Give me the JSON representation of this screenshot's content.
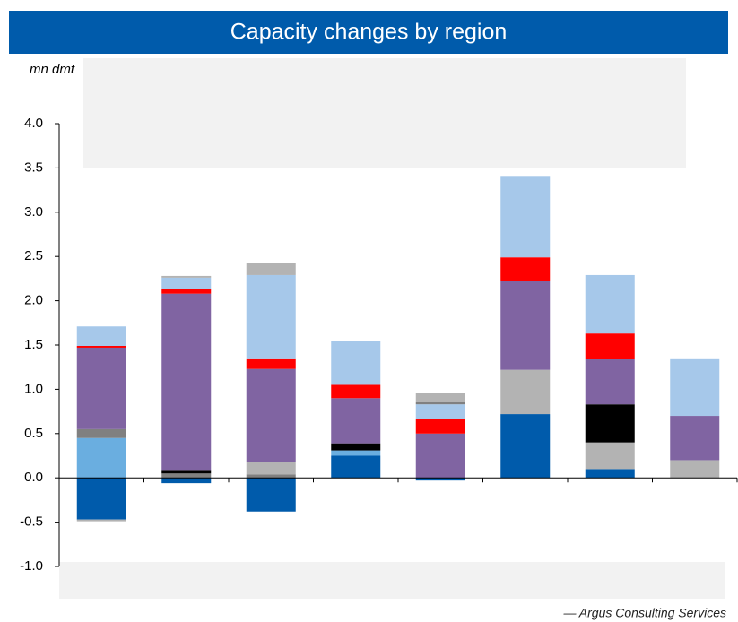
{
  "chart_data": {
    "type": "stacked_bar",
    "title": "Capacity changes by region",
    "ylabel": "mn dmt",
    "source": "— Argus Consulting Services",
    "categories": [
      null,
      null,
      null,
      null,
      null,
      null,
      null,
      null
    ],
    "ylim": [
      -1,
      4
    ],
    "yticks": [
      {
        "value": -1,
        "label": "-1.0"
      },
      {
        "value": -0.5,
        "label": "-0.5"
      },
      {
        "value": 0,
        "label": "0.0"
      },
      {
        "value": 0.5,
        "label": "0.5"
      },
      {
        "value": 1,
        "label": "1.0"
      },
      {
        "value": 1.5,
        "label": "1.5"
      },
      {
        "value": 2,
        "label": "2.0"
      },
      {
        "value": 2.5,
        "label": "2.5"
      },
      {
        "value": 3,
        "label": "3.0"
      },
      {
        "value": 3.5,
        "label": "3.5"
      },
      {
        "value": 4,
        "label": "4.0"
      }
    ],
    "series": [
      {
        "color": "#005bab",
        "values": [
          -0.47,
          -0.06,
          -0.38,
          0.25,
          -0.03,
          0.72,
          0.1,
          0
        ]
      },
      {
        "color": "#6aaee0",
        "values": [
          0.45,
          0,
          0,
          0.06,
          0,
          0,
          0,
          0
        ]
      },
      {
        "color": "#808080",
        "values": [
          0.1,
          0.05,
          0.04,
          0,
          0,
          0,
          0,
          0
        ]
      },
      {
        "color": "#b3b3b3",
        "values": [
          -0.02,
          0,
          0.14,
          0,
          0,
          0.5,
          0.3,
          0.2
        ]
      },
      {
        "color": "#000000",
        "values": [
          0,
          0.04,
          0,
          0.08,
          0,
          0,
          0.43,
          0
        ]
      },
      {
        "color": "#8064a2",
        "values": [
          0.92,
          1.99,
          1.05,
          0.51,
          0.5,
          1.0,
          0.51,
          0.5
        ]
      },
      {
        "color": "#ff0000",
        "values": [
          0.02,
          0.05,
          0.12,
          0.15,
          0.17,
          0.27,
          0.29,
          0
        ]
      },
      {
        "color": "#a6c8ea",
        "values": [
          0.22,
          0.13,
          0.94,
          0.5,
          0.16,
          0.92,
          0.66,
          0.65
        ]
      },
      {
        "color": "#808080",
        "values": [
          0,
          0,
          0,
          0,
          0.03,
          0,
          0,
          0
        ]
      },
      {
        "color": "#b3b3b3",
        "values": [
          0,
          0.02,
          0.14,
          0,
          0.1,
          0,
          0,
          0
        ]
      }
    ]
  }
}
